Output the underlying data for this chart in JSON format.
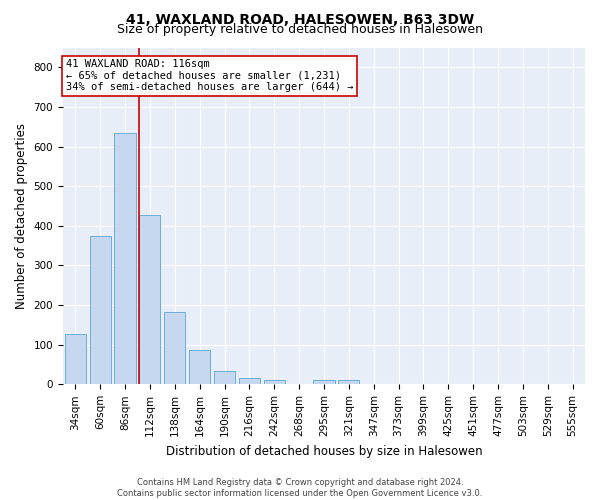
{
  "title": "41, WAXLAND ROAD, HALESOWEN, B63 3DW",
  "subtitle": "Size of property relative to detached houses in Halesowen",
  "xlabel": "Distribution of detached houses by size in Halesowen",
  "ylabel": "Number of detached properties",
  "footer_line1": "Contains HM Land Registry data © Crown copyright and database right 2024.",
  "footer_line2": "Contains public sector information licensed under the Open Government Licence v3.0.",
  "bar_labels": [
    "34sqm",
    "60sqm",
    "86sqm",
    "112sqm",
    "138sqm",
    "164sqm",
    "190sqm",
    "216sqm",
    "242sqm",
    "268sqm",
    "295sqm",
    "321sqm",
    "347sqm",
    "373sqm",
    "399sqm",
    "425sqm",
    "451sqm",
    "477sqm",
    "503sqm",
    "529sqm",
    "555sqm"
  ],
  "bar_values": [
    128,
    375,
    635,
    428,
    183,
    87,
    33,
    15,
    10,
    0,
    10,
    10,
    0,
    0,
    0,
    0,
    0,
    0,
    0,
    0,
    0
  ],
  "bar_color": "#c5d8f0",
  "bar_edge_color": "#6aaed6",
  "background_color": "#e8eef8",
  "grid_color": "#ffffff",
  "vline_color": "#cc0000",
  "vline_pos": 2.575,
  "ylim": [
    0,
    850
  ],
  "yticks": [
    0,
    100,
    200,
    300,
    400,
    500,
    600,
    700,
    800
  ],
  "annotation_title": "41 WAXLAND ROAD: 116sqm",
  "annotation_line1": "← 65% of detached houses are smaller (1,231)",
  "annotation_line2": "34% of semi-detached houses are larger (644) →",
  "annotation_box_color": "#ffffff",
  "annotation_box_edge": "#cc0000",
  "title_fontsize": 10,
  "subtitle_fontsize": 9,
  "xlabel_fontsize": 8.5,
  "ylabel_fontsize": 8.5,
  "tick_fontsize": 7.5,
  "annotation_fontsize": 7.5,
  "footer_fontsize": 6.0
}
